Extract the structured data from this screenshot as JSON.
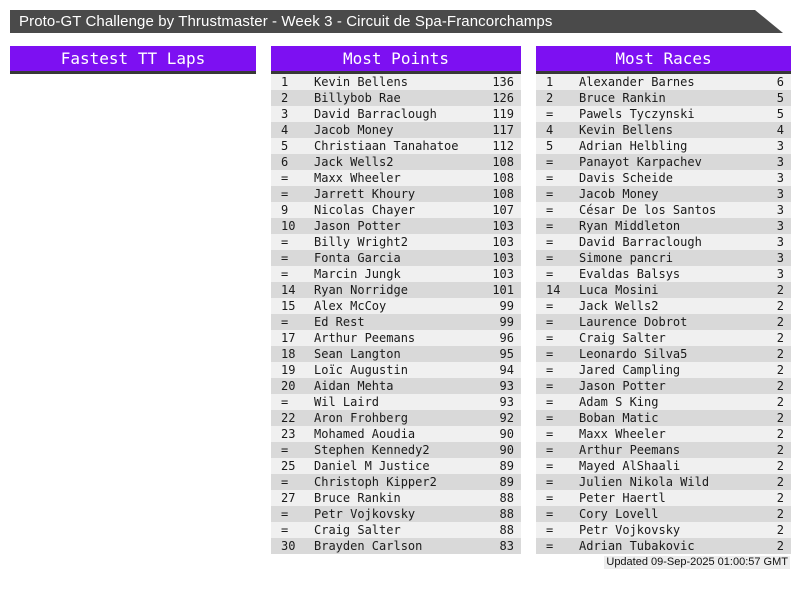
{
  "title_bar": {
    "title": "Proto-GT Challenge by Thrustmaster - Week 3 - Circuit de Spa-Francorchamps"
  },
  "sections": [
    {
      "key": "fastest-tt-laps",
      "header": "Fastest TT Laps",
      "rows": []
    },
    {
      "key": "most-points",
      "header": "Most Points",
      "rows": [
        [
          "1",
          "Kevin Bellens",
          "136"
        ],
        [
          "2",
          "Billybob Rae",
          "126"
        ],
        [
          "3",
          "David Barraclough",
          "119"
        ],
        [
          "4",
          "Jacob Money",
          "117"
        ],
        [
          "5",
          "Christiaan Tanahatoe",
          "112"
        ],
        [
          "6",
          "Jack Wells2",
          "108"
        ],
        [
          "=",
          "Maxx Wheeler",
          "108"
        ],
        [
          "=",
          "Jarrett Khoury",
          "108"
        ],
        [
          "9",
          "Nicolas Chayer",
          "107"
        ],
        [
          "10",
          "Jason Potter",
          "103"
        ],
        [
          "=",
          "Billy Wright2",
          "103"
        ],
        [
          "=",
          "Fonta Garcia",
          "103"
        ],
        [
          "=",
          "Marcin Jungk",
          "103"
        ],
        [
          "14",
          "Ryan Norridge",
          "101"
        ],
        [
          "15",
          "Alex McCoy",
          "99"
        ],
        [
          "=",
          "Ed Rest",
          "99"
        ],
        [
          "17",
          "Arthur Peemans",
          "96"
        ],
        [
          "18",
          "Sean Langton",
          "95"
        ],
        [
          "19",
          "Loïc Augustin",
          "94"
        ],
        [
          "20",
          "Aidan Mehta",
          "93"
        ],
        [
          "=",
          "Wil Laird",
          "93"
        ],
        [
          "22",
          "Aron Frohberg",
          "92"
        ],
        [
          "23",
          "Mohamed Aoudia",
          "90"
        ],
        [
          "=",
          "Stephen Kennedy2",
          "90"
        ],
        [
          "25",
          "Daniel M Justice",
          "89"
        ],
        [
          "=",
          "Christoph Kipper2",
          "89"
        ],
        [
          "27",
          "Bruce Rankin",
          "88"
        ],
        [
          "=",
          "Petr Vojkovsky",
          "88"
        ],
        [
          "=",
          "Craig Salter",
          "88"
        ],
        [
          "30",
          "Brayden Carlson",
          "83"
        ]
      ]
    },
    {
      "key": "most-races",
      "header": "Most Races",
      "rows": [
        [
          "1",
          "Alexander Barnes",
          "6"
        ],
        [
          "2",
          "Bruce Rankin",
          "5"
        ],
        [
          "=",
          "Pawels Tyczynski",
          "5"
        ],
        [
          "4",
          "Kevin Bellens",
          "4"
        ],
        [
          "5",
          "Adrian Helbling",
          "3"
        ],
        [
          "=",
          "Panayot Karpachev",
          "3"
        ],
        [
          "=",
          "Davis Scheide",
          "3"
        ],
        [
          "=",
          "Jacob Money",
          "3"
        ],
        [
          "=",
          "César De los Santos",
          "3"
        ],
        [
          "=",
          "Ryan Middleton",
          "3"
        ],
        [
          "=",
          "David Barraclough",
          "3"
        ],
        [
          "=",
          "Simone pancri",
          "3"
        ],
        [
          "=",
          "Evaldas Balsys",
          "3"
        ],
        [
          "14",
          "Luca Mosini",
          "2"
        ],
        [
          "=",
          "Jack Wells2",
          "2"
        ],
        [
          "=",
          "Laurence Dobrot",
          "2"
        ],
        [
          "=",
          "Craig Salter",
          "2"
        ],
        [
          "=",
          "Leonardo Silva5",
          "2"
        ],
        [
          "=",
          "Jared Campling",
          "2"
        ],
        [
          "=",
          "Jason Potter",
          "2"
        ],
        [
          "=",
          "Adam S King",
          "2"
        ],
        [
          "=",
          "Boban Matic",
          "2"
        ],
        [
          "=",
          "Maxx Wheeler",
          "2"
        ],
        [
          "=",
          "Arthur Peemans",
          "2"
        ],
        [
          "=",
          "Mayed AlShaali",
          "2"
        ],
        [
          "=",
          "Julien Nikola Wild",
          "2"
        ],
        [
          "=",
          "Peter Haertl",
          "2"
        ],
        [
          "=",
          "Cory Lovell",
          "2"
        ],
        [
          "=",
          "Petr Vojkovsky",
          "2"
        ],
        [
          "=",
          "Adrian Tubakovic",
          "2"
        ]
      ]
    }
  ],
  "footer": {
    "updated": "Updated 09-Sep-2025 01:00:57 GMT"
  },
  "colors": {
    "accent_purple": "#7d10f2",
    "titlebar_gray": "#4a4a4a",
    "header_underline": "#383838",
    "row_light": "#f0f0f0",
    "row_dark": "#d9d9d9",
    "row_text": "#1a1a1a"
  }
}
